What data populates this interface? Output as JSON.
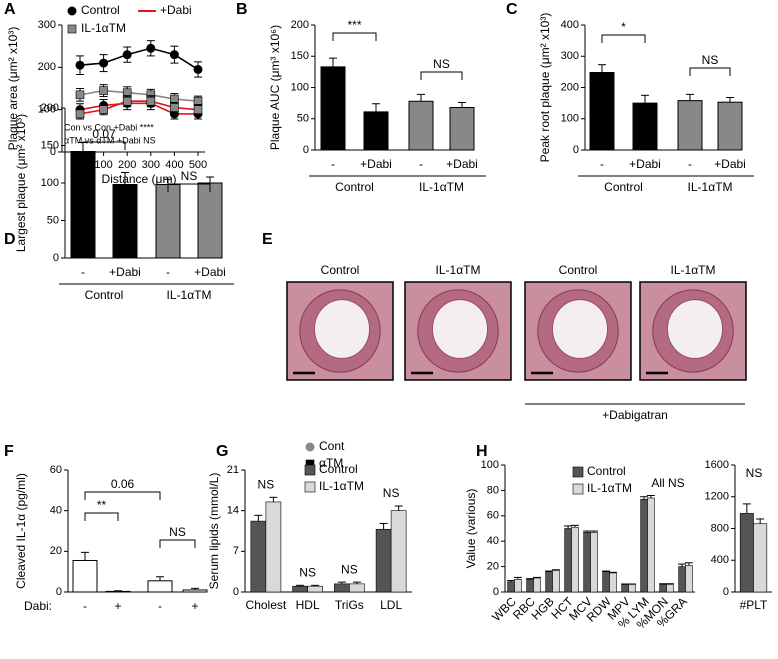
{
  "chart_data": [
    {
      "panel": "A",
      "type": "line",
      "ylabel": "Plaque area (μm² x10³)",
      "xlabel": "Distance (μm)",
      "x": [
        0,
        100,
        200,
        300,
        400,
        500
      ],
      "xlim": [
        0,
        500
      ],
      "xticks": [
        0,
        100,
        200,
        300,
        400,
        500
      ],
      "ylim": [
        0,
        300
      ],
      "yticks": [
        0,
        100,
        200,
        300
      ],
      "series": [
        {
          "name": "Control",
          "color": "#000000",
          "marker_color": "#000000",
          "marker": "circle",
          "values": [
            205,
            210,
            230,
            245,
            230,
            195
          ],
          "errors": [
            22,
            20,
            18,
            18,
            20,
            18
          ]
        },
        {
          "name": "IL-1αTM",
          "color": "#888888",
          "marker_color": "#888888",
          "marker": "square",
          "values": [
            135,
            145,
            140,
            135,
            125,
            120
          ],
          "errors": [
            15,
            14,
            14,
            13,
            13,
            12
          ]
        },
        {
          "name": "+Dabi",
          "color": "#e3141c",
          "marker_color": "#000000",
          "marker": "circle",
          "values": [
            100,
            110,
            115,
            115,
            90,
            90
          ],
          "errors": [
            14,
            14,
            15,
            15,
            12,
            12
          ]
        },
        {
          "color": "#e3141c",
          "marker_color": "#888888",
          "marker": "square",
          "values": [
            90,
            100,
            120,
            120,
            105,
            100
          ],
          "errors": [
            12,
            12,
            13,
            13,
            12,
            12
          ]
        }
      ],
      "annotations": [
        "Con vs Con +Dabi ****",
        "αTM vs αTM +Dabi NS"
      ]
    },
    {
      "panel": "B",
      "type": "bar",
      "ylabel": "Plaque AUC (μm³ x10⁶)",
      "categories": [
        "-",
        "+Dabi",
        "-",
        "+Dabi"
      ],
      "groups": [
        "Control",
        "IL-1αTM"
      ],
      "values": [
        133,
        61,
        78,
        68
      ],
      "errors": [
        14,
        13,
        11,
        8
      ],
      "colors": [
        "#000000",
        "#000000",
        "#888888",
        "#888888"
      ],
      "ylim": [
        0,
        200
      ],
      "yticks": [
        0,
        50,
        100,
        150,
        200
      ],
      "annotations": [
        "***",
        "NS"
      ]
    },
    {
      "panel": "C",
      "type": "bar",
      "ylabel": "Peak root plaque (μm² x10³)",
      "categories": [
        "-",
        "+Dabi",
        "-",
        "+Dabi"
      ],
      "groups": [
        "Control",
        "IL-1αTM"
      ],
      "values": [
        248,
        150,
        158,
        153
      ],
      "errors": [
        25,
        25,
        20,
        15
      ],
      "colors": [
        "#000000",
        "#000000",
        "#888888",
        "#888888"
      ],
      "ylim": [
        0,
        400
      ],
      "yticks": [
        0,
        100,
        200,
        300,
        400
      ],
      "annotations": [
        "*",
        "NS"
      ]
    },
    {
      "panel": "D",
      "type": "bar",
      "ylabel": "Largest plaque (μm² x10³)",
      "categories": [
        "-",
        "+Dabi",
        "-",
        "+Dabi"
      ],
      "groups": [
        "Control",
        "IL-1αTM"
      ],
      "values": [
        142,
        98,
        98,
        100
      ],
      "errors": [
        12,
        16,
        7,
        8
      ],
      "colors": [
        "#000000",
        "#000000",
        "#888888",
        "#888888"
      ],
      "ylim": [
        0,
        200
      ],
      "yticks": [
        0,
        50,
        100,
        150,
        200
      ],
      "annotations": [
        "0.07",
        "NS"
      ]
    },
    {
      "panel": "E",
      "type": "micrograph",
      "panels": [
        "Control",
        "IL-1αTM",
        "Control",
        "IL-1αTM"
      ],
      "caption": "+Dabigatran"
    },
    {
      "panel": "F",
      "type": "bar",
      "ylabel": "Cleaved IL-1α (pg/ml)",
      "category_title": "Dabi:",
      "categories": [
        "-",
        "+",
        "-",
        "+"
      ],
      "values": [
        15.5,
        0.3,
        5.5,
        1
      ],
      "errors": [
        4,
        0.3,
        2,
        0.8
      ],
      "colors": [
        "#ffffff",
        "#ffffff",
        "#ffffff",
        "#ffffff"
      ],
      "ylim": [
        0,
        60
      ],
      "yticks": [
        0,
        20,
        40,
        60
      ],
      "annotations": [
        "**",
        "0.06",
        "NS"
      ],
      "legend": [
        {
          "name": "Cont",
          "color": "#888888",
          "marker": "circle"
        },
        {
          "name": "αTM",
          "color": "#000000",
          "marker": "square"
        }
      ]
    },
    {
      "panel": "G",
      "type": "grouped",
      "ylabel": "Serum lipids (mmol/L)",
      "categories": [
        "Cholest",
        "HDL",
        "TriGs",
        "LDL"
      ],
      "series": [
        {
          "name": "Control",
          "color": "#555555",
          "values": [
            12.2,
            1.0,
            1.4,
            10.8
          ],
          "errors": [
            1.0,
            0.15,
            0.3,
            1.0
          ]
        },
        {
          "name": "IL-1αTM",
          "color": "#d9d9d9",
          "values": [
            15.5,
            1.0,
            1.4,
            14.0
          ],
          "errors": [
            0.8,
            0.15,
            0.3,
            0.8
          ]
        }
      ],
      "ylim": [
        0,
        21
      ],
      "yticks": [
        0,
        7,
        14,
        21
      ],
      "annotations": [
        "NS",
        "NS",
        "NS",
        "NS"
      ]
    },
    {
      "panel": "H",
      "type": "grouped",
      "ylabel": "Value (various)",
      "categories": [
        "WBC",
        "RBC",
        "HGB",
        "HCT",
        "MCV",
        "RDW",
        "MPV",
        "% LYM",
        "%MON",
        "%GRA"
      ],
      "series": [
        {
          "name": "Control",
          "color": "#555555",
          "values": [
            8,
            10,
            16,
            50,
            47,
            16,
            6,
            73,
            6,
            20
          ],
          "errors": [
            1,
            0.5,
            0.5,
            2,
            1,
            0.5,
            0.3,
            2,
            0.5,
            2
          ]
        },
        {
          "name": "IL-1αTM",
          "color": "#d9d9d9",
          "values": [
            10,
            11,
            17,
            51,
            47,
            15,
            6,
            74,
            6,
            21
          ],
          "errors": [
            1.5,
            0.5,
            0.5,
            1.5,
            1,
            0.5,
            0.3,
            2,
            0.5,
            2
          ]
        }
      ],
      "ylim": [
        0,
        100
      ],
      "yticks": [
        0,
        20,
        40,
        60,
        80,
        100
      ],
      "annotations": [
        "All NS"
      ]
    },
    {
      "type": "grouped",
      "categories": [
        "#PLT"
      ],
      "series": [
        {
          "color": "#555555",
          "values": [
            990
          ],
          "errors": [
            120
          ]
        },
        {
          "color": "#d9d9d9",
          "values": [
            860
          ],
          "errors": [
            60
          ]
        }
      ],
      "ylim": [
        0,
        1600
      ],
      "yticks": [
        0,
        400,
        800,
        1200,
        1600
      ],
      "annotations": [
        "NS"
      ]
    }
  ]
}
